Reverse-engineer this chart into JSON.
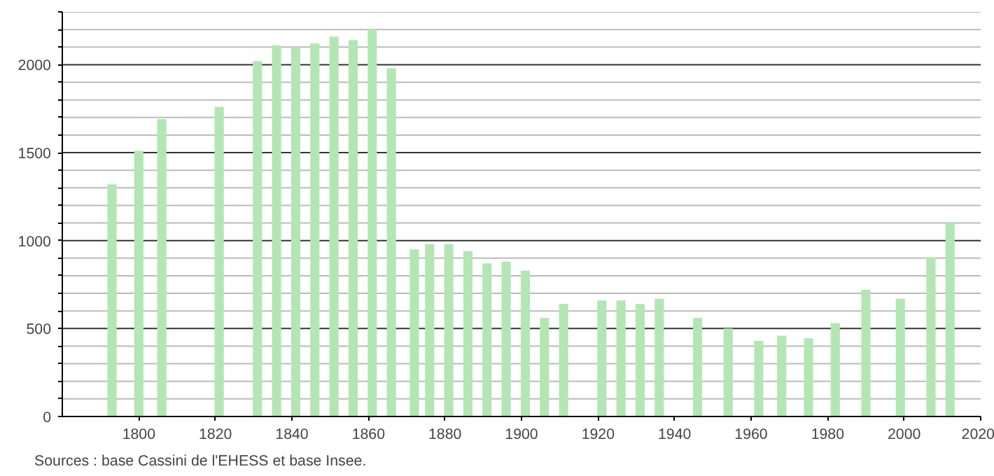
{
  "chart_data": {
    "type": "bar",
    "x": [
      1793,
      1800,
      1806,
      1821,
      1831,
      1836,
      1841,
      1846,
      1851,
      1856,
      1861,
      1866,
      1872,
      1876,
      1881,
      1886,
      1891,
      1896,
      1901,
      1906,
      1911,
      1921,
      1926,
      1931,
      1936,
      1946,
      1954,
      1962,
      1968,
      1975,
      1982,
      1990,
      1999,
      2007,
      2012
    ],
    "values": [
      1320,
      1510,
      1690,
      1760,
      2020,
      2110,
      2100,
      2120,
      2160,
      2140,
      2200,
      1980,
      950,
      980,
      980,
      940,
      870,
      880,
      830,
      560,
      640,
      660,
      660,
      640,
      670,
      560,
      500,
      430,
      460,
      445,
      530,
      720,
      670,
      905,
      1100
    ],
    "color": "#b3e6b3",
    "xlim": [
      1780,
      2020
    ],
    "xticks": [
      1800,
      1820,
      1840,
      1860,
      1880,
      1900,
      1920,
      1940,
      1960,
      1980,
      2000,
      2020
    ],
    "ylim": [
      0,
      2300
    ],
    "yticks": [
      0,
      {
        "value": 100,
        "label": null
      },
      {
        "value": 200,
        "label": null
      },
      {
        "value": 300,
        "label": null
      },
      {
        "value": 400,
        "label": null
      },
      500,
      {
        "value": 600,
        "label": null
      },
      {
        "value": 700,
        "label": null
      },
      {
        "value": 800,
        "label": null
      },
      {
        "value": 900,
        "label": null
      },
      1000,
      {
        "value": 1100,
        "label": null
      },
      {
        "value": 1200,
        "label": null
      },
      {
        "value": 1300,
        "label": null
      },
      {
        "value": 1400,
        "label": null
      },
      1500,
      {
        "value": 1600,
        "label": null
      },
      {
        "value": 1700,
        "label": null
      },
      {
        "value": 1800,
        "label": null
      },
      {
        "value": 1900,
        "label": null
      },
      2000,
      {
        "value": 2100,
        "label": null
      },
      {
        "value": 2200,
        "label": null
      },
      {
        "value": 2300,
        "label": null
      }
    ],
    "grid": "y",
    "annotations": [
      "Sources : base Cassini de l'EHESS et base Insee."
    ]
  }
}
